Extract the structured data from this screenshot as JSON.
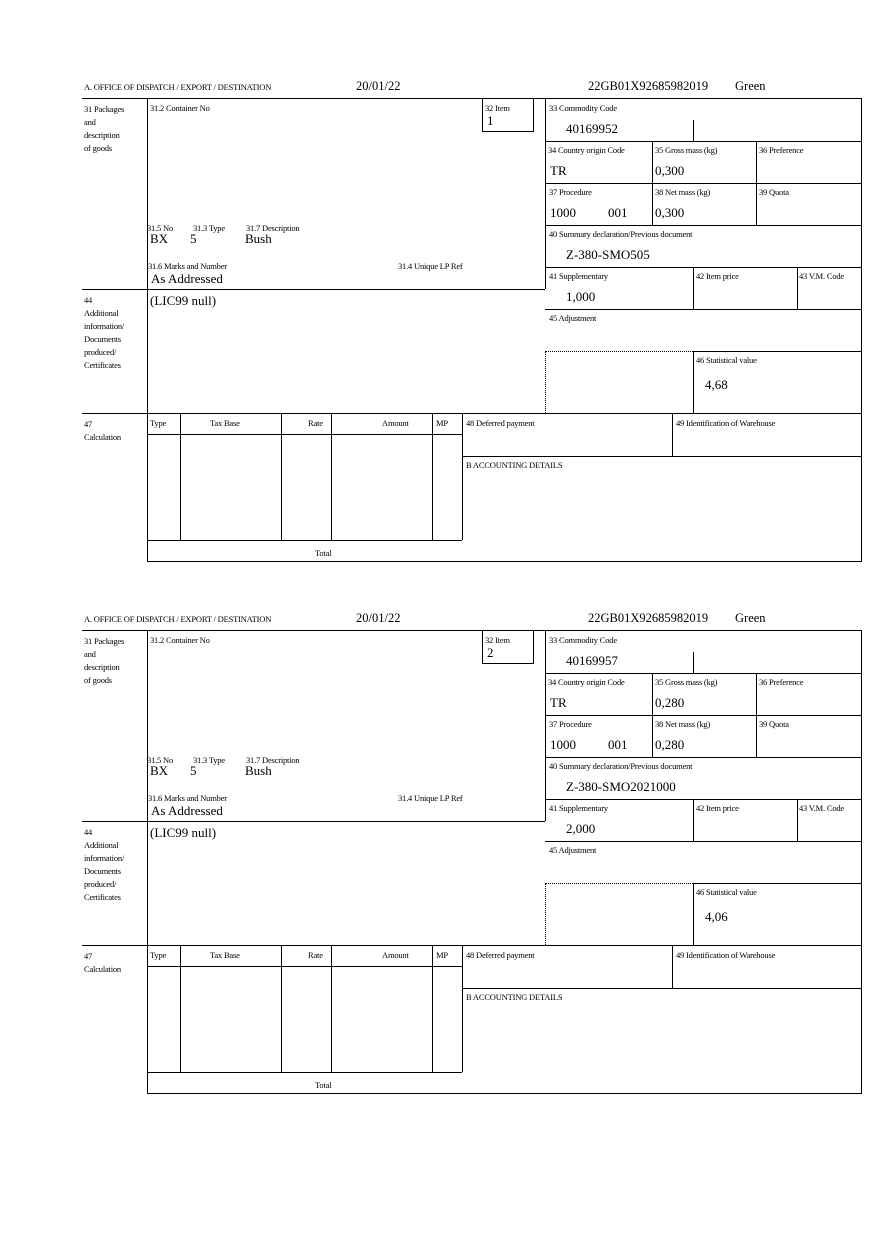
{
  "labels": {
    "office": "A.  OFFICE OF DISPATCH / EXPORT / DESTINATION",
    "packages": [
      "31 Packages",
      "and",
      "description",
      "of goods"
    ],
    "container_no": "31.2 Container No",
    "item": "32 Item",
    "commodity_code": "33 Commodity Code",
    "country_origin": "34 Country origin Code",
    "gross_mass": "35 Gross mass (kg)",
    "preference": "36 Preference",
    "procedure": "37 Procedure",
    "net_mass": "38 Net mass (kg)",
    "quota": "39 Quota",
    "summary_decl": "40 Summary declaration/Previous document",
    "supplementary": "41 Supplementary",
    "item_price": "42 Item price",
    "vm_code": "43 V.M. Code",
    "adjustment": "45 Adjustment",
    "statistical_value": "46 Statistical value",
    "pkg_no": "31.5 No",
    "pkg_type": "31.3 Type",
    "pkg_desc": "31.7 Description",
    "marks": "31.6 Marks and Number",
    "unique_lp": "31.4 Unique LP Ref",
    "additional": [
      "44",
      "Additional",
      "information/",
      "Documents",
      "produced/",
      "Certificates"
    ],
    "calculation": [
      "47",
      "Calculation"
    ],
    "calc_cols": [
      "Type",
      "Tax Base",
      "Rate",
      "Amount",
      "MP"
    ],
    "total": "Total",
    "deferred_payment": "48 Deferred payment",
    "warehouse": "49 Identification of Warehouse",
    "accounting": "B ACCOUNTING DETAILS"
  },
  "items": [
    {
      "date": "20/01/22",
      "reference": "22GB01X92685982019",
      "route": "Green",
      "item_no": "1",
      "commodity_code": "40169952",
      "country_origin": "TR",
      "gross_mass": "0,300",
      "procedure": "1000",
      "procedure_add": "001",
      "net_mass": "0,300",
      "summary_decl": "Z-380-SMO505",
      "supplementary": "1,000",
      "statistical_value": "4,68",
      "pkg_no": "BX",
      "pkg_type": "5",
      "pkg_desc": "Bush",
      "marks": "As Addressed",
      "additional": "(LIC99 null)"
    },
    {
      "date": "20/01/22",
      "reference": "22GB01X92685982019",
      "route": "Green",
      "item_no": "2",
      "commodity_code": "40169957",
      "country_origin": "TR",
      "gross_mass": "0,280",
      "procedure": "1000",
      "procedure_add": "001",
      "net_mass": "0,280",
      "summary_decl": "Z-380-SMO2021000",
      "supplementary": "2,000",
      "statistical_value": "4,06",
      "pkg_no": "BX",
      "pkg_type": "5",
      "pkg_desc": "Bush",
      "marks": "As Addressed",
      "additional": "(LIC99 null)"
    }
  ]
}
